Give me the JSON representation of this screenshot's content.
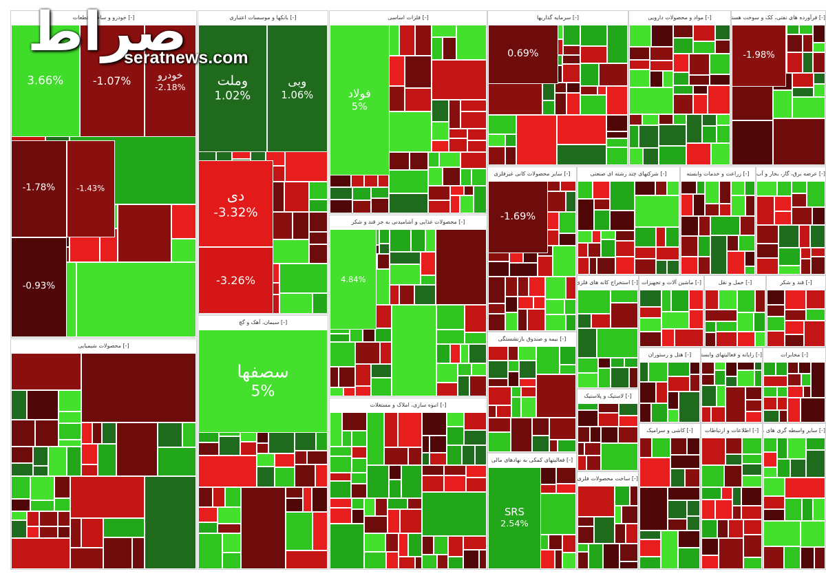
{
  "watermark": {
    "logo": "صراط",
    "site": "seratnews.com"
  },
  "sections": [
    {
      "title": "[-] خودرو و ساخت قطعات",
      "tiles": [
        {
          "change": "3.66%",
          "color": "#3fdc2a"
        },
        {
          "change": "-1.07%",
          "color": "#8a0f0f"
        },
        {
          "label": "خودرو",
          "change": "-2.18%",
          "color": "#8a0f0f"
        },
        {
          "change": "-1.78%",
          "color": "#6e0c0c"
        },
        {
          "change": "-1.43%",
          "color": "#8a0f0f"
        },
        {
          "change": "-0.93%",
          "color": "#4f0707"
        }
      ]
    },
    {
      "title": "[-] بانکها و موسسات اعتباری",
      "tiles": [
        {
          "label": "وملت",
          "change": "1.02%",
          "color": "#1f6a1c"
        },
        {
          "label": "وبی",
          "change": "1.06%",
          "color": "#1f6a1c"
        },
        {
          "label": "دی",
          "change": "-3.32%",
          "color": "#e21a1a"
        },
        {
          "change": "-3.26%",
          "color": "#d41616"
        }
      ]
    },
    {
      "title": "[-] فلزات اساسی",
      "tiles": [
        {
          "label": "فولاد",
          "change": "5%",
          "color": "#45e02e"
        }
      ]
    },
    {
      "title": "[-] سرمایه گذاریها",
      "tiles": [
        {
          "change": "0.69%",
          "color": "#6e0c0c"
        }
      ]
    },
    {
      "title": "[-] مواد و محصولات دارویی",
      "tiles": []
    },
    {
      "title": "[-] فرآورده های نفتی، کک و سوخت هسته ای",
      "tiles": [
        {
          "change": "-1.98%",
          "color": "#8a0f0f"
        }
      ]
    },
    {
      "title": "[-] محصولات شیمیایی",
      "tiles": []
    },
    {
      "title": "[-] سیمان، آهک و گچ",
      "tiles": [
        {
          "label": "سصفها",
          "change": "5%",
          "color": "#45e02e"
        }
      ]
    },
    {
      "title": "[-] محصولات غذایی و آشامیدنی به جز قند و شکر",
      "tiles": [
        {
          "change": "4.84%",
          "color": "#45e02e"
        }
      ]
    },
    {
      "title": "[-] انبوه سازی، املاک و مستغلات",
      "tiles": []
    },
    {
      "title": "[-] سایر محصولات کانی غیرفلزی",
      "tiles": [
        {
          "change": "-1.69%",
          "color": "#6e0c0c"
        }
      ]
    },
    {
      "title": "[-] شرکتهای چند رشته ای صنعتی",
      "tiles": []
    },
    {
      "title": "[-] زراعت و خدمات وابسته",
      "tiles": []
    },
    {
      "title": "[-] عرضه برق، گاز، بخار و آب گرم",
      "tiles": []
    },
    {
      "title": "[-] استخراج کانه های فلزی",
      "tiles": []
    },
    {
      "title": "[-] ماشین آلات و تجهیزات",
      "tiles": []
    },
    {
      "title": "[-] حمل و نقل",
      "tiles": []
    },
    {
      "title": "[-] قند و شکر",
      "tiles": []
    },
    {
      "title": "[-] بیمه و صندوق بازنشستگی",
      "tiles": []
    },
    {
      "title": "[-] لاستیک و پلاستیک",
      "tiles": []
    },
    {
      "title": "[-] هتل و رستوران",
      "tiles": []
    },
    {
      "title": "[-] رایانه و فعالیتهای وابسته",
      "tiles": []
    },
    {
      "title": "[-] مخابرات",
      "tiles": []
    },
    {
      "title": "[-] فعالیتهای کمکی به نهادهای مالی",
      "tiles": [
        {
          "label": "SRS",
          "change": "2.54%",
          "color": "#22a61a"
        }
      ]
    },
    {
      "title": "[-] ساخت محصولات فلزی",
      "tiles": []
    },
    {
      "title": "[-] کاشی و سرامیک",
      "tiles": []
    },
    {
      "title": "[-] سایر واسطه گری های مالی",
      "tiles": []
    },
    {
      "title": "[-] اطلاعات و ارتباطات",
      "tiles": []
    }
  ]
}
